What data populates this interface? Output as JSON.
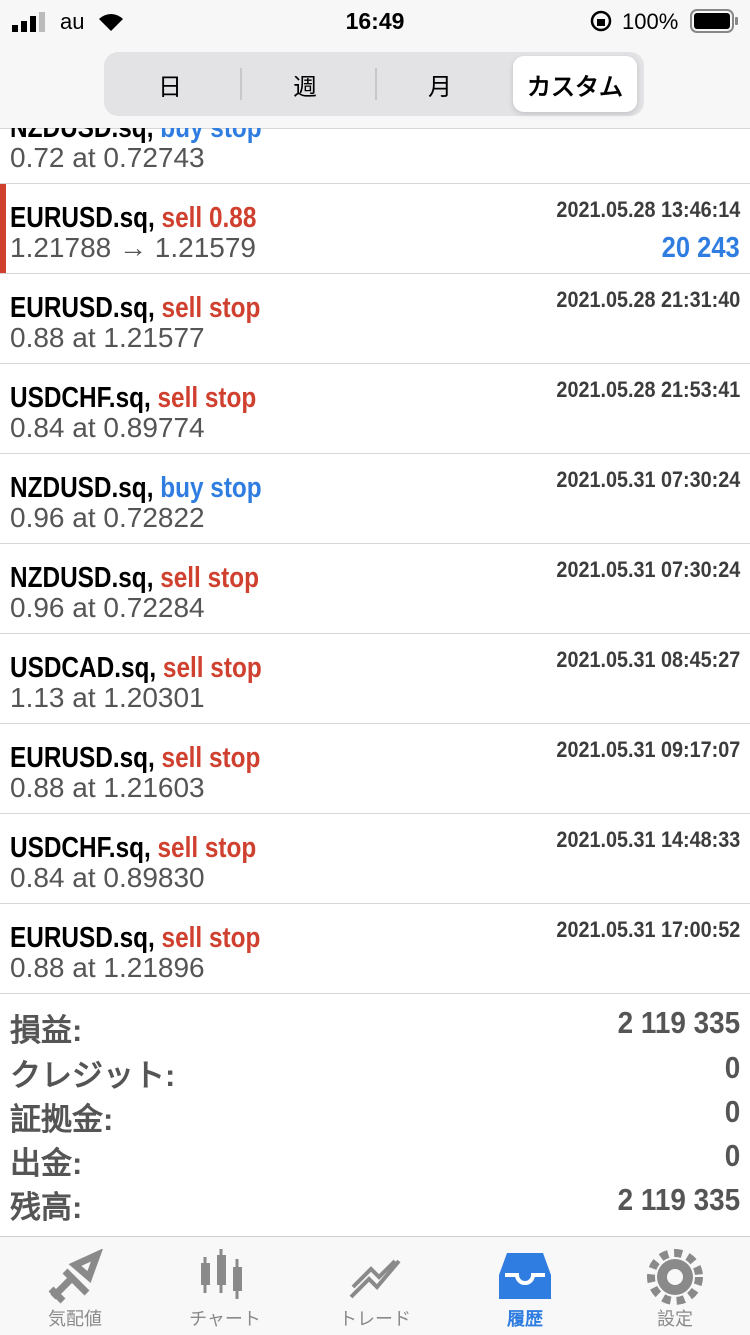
{
  "status_bar": {
    "carrier": "au",
    "time": "16:49",
    "battery": "100%"
  },
  "segments": {
    "items": [
      "日",
      "週",
      "月",
      "カスタム"
    ],
    "selected": 3
  },
  "rows": [
    {
      "symbol": "NZDUSD.sq,",
      "action": "buy stop",
      "color": "#2f7de1",
      "detail": "0.72 at 0.72743"
    },
    {
      "symbol": "EURUSD.sq,",
      "action": "sell 0.88",
      "color": "#d0402f",
      "time": "2021.05.28 13:46:14",
      "detail": "1.21788 → 1.21579",
      "profit": "20 243",
      "profit_color": "#2f7de1",
      "marker": true
    },
    {
      "symbol": "EURUSD.sq,",
      "action": "sell stop",
      "color": "#d0402f",
      "time": "2021.05.28 21:31:40",
      "detail": "0.88 at 1.21577"
    },
    {
      "symbol": "USDCHF.sq,",
      "action": "sell stop",
      "color": "#d0402f",
      "time": "2021.05.28 21:53:41",
      "detail": "0.84 at 0.89774"
    },
    {
      "symbol": "NZDUSD.sq,",
      "action": "buy stop",
      "color": "#2f7de1",
      "time": "2021.05.31 07:30:24",
      "detail": "0.96 at 0.72822"
    },
    {
      "symbol": "NZDUSD.sq,",
      "action": "sell stop",
      "color": "#d0402f",
      "time": "2021.05.31 07:30:24",
      "detail": "0.96 at 0.72284"
    },
    {
      "symbol": "USDCAD.sq,",
      "action": "sell stop",
      "color": "#d0402f",
      "time": "2021.05.31 08:45:27",
      "detail": "1.13 at 1.20301"
    },
    {
      "symbol": "EURUSD.sq,",
      "action": "sell stop",
      "color": "#d0402f",
      "time": "2021.05.31 09:17:07",
      "detail": "0.88 at 1.21603"
    },
    {
      "symbol": "USDCHF.sq,",
      "action": "sell stop",
      "color": "#d0402f",
      "time": "2021.05.31 14:48:33",
      "detail": "0.84 at 0.89830"
    },
    {
      "symbol": "EURUSD.sq,",
      "action": "sell stop",
      "color": "#d0402f",
      "time": "2021.05.31 17:00:52",
      "detail": "0.88 at 1.21896"
    }
  ],
  "summary": [
    {
      "label": "損益:",
      "value": "2 119 335"
    },
    {
      "label": "クレジット:",
      "value": "0"
    },
    {
      "label": "証拠金:",
      "value": "0"
    },
    {
      "label": "出金:",
      "value": "0"
    },
    {
      "label": "残高:",
      "value": "2 119 335"
    }
  ],
  "tabs": {
    "items": [
      "気配値",
      "チャート",
      "トレード",
      "履歴",
      "設定"
    ],
    "selected": 3
  }
}
